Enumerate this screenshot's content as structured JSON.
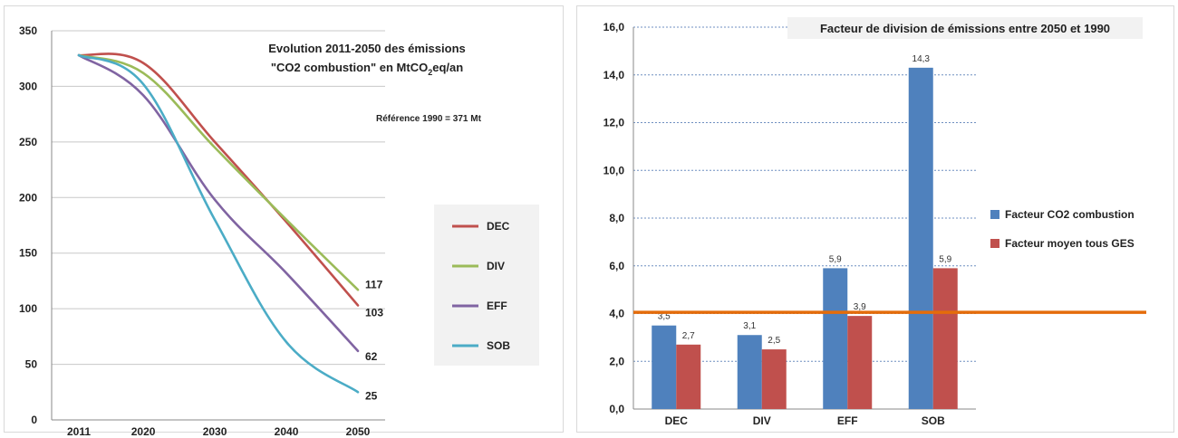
{
  "chart_data": [
    {
      "type": "line",
      "title_line1": "Evolution 2011-2050 des émissions",
      "title_line2_main": "\"CO2 combustion\" en MtCO",
      "title_line2_sub": "2",
      "title_line2_tail": "eq/an",
      "note": "Référence 1990 = 371 Mt",
      "x": [
        2011,
        2020,
        2030,
        2040,
        2050
      ],
      "ylim": [
        0,
        350
      ],
      "yticks": [
        "0",
        "50",
        "100",
        "150",
        "200",
        "250",
        "300",
        "350"
      ],
      "xticks": [
        "2011",
        "2020",
        "2030",
        "2040",
        "2050"
      ],
      "legend_position": "right",
      "grid": true,
      "series": [
        {
          "name": "DEC",
          "color": "#c0504d",
          "values": [
            328,
            321,
            250,
            178,
            103
          ],
          "end_label": "103"
        },
        {
          "name": "DIV",
          "color": "#9bbb59",
          "values": [
            328,
            312,
            245,
            180,
            117
          ],
          "end_label": "117"
        },
        {
          "name": "EFF",
          "color": "#8064a2",
          "values": [
            328,
            292,
            198,
            132,
            62
          ],
          "end_label": "62"
        },
        {
          "name": "SOB",
          "color": "#4bacc6",
          "values": [
            328,
            302,
            180,
            70,
            25
          ],
          "end_label": "25"
        }
      ]
    },
    {
      "type": "bar",
      "title": "Facteur de division de émissions entre 2050 et 1990",
      "categories": [
        "DEC",
        "DIV",
        "EFF",
        "SOB"
      ],
      "ylim": [
        0,
        16
      ],
      "yticks": [
        "0,0",
        "2,0",
        "4,0",
        "6,0",
        "8,0",
        "10,0",
        "12,0",
        "14,0",
        "16,0"
      ],
      "reference_line": 4.05,
      "reference_color": "#e46c0a",
      "legend_position": "right",
      "grid": true,
      "series": [
        {
          "name": "Facteur CO2 combustion",
          "color": "#4f81bd",
          "values": [
            3.5,
            3.1,
            5.9,
            14.3
          ],
          "labels": [
            "3,5",
            "3,1",
            "5,9",
            "14,3"
          ]
        },
        {
          "name": "Facteur moyen tous GES",
          "color": "#c0504d",
          "values": [
            2.7,
            2.5,
            3.9,
            5.9
          ],
          "labels": [
            "2,7",
            "2,5",
            "3,9",
            "5,9"
          ]
        }
      ]
    }
  ]
}
